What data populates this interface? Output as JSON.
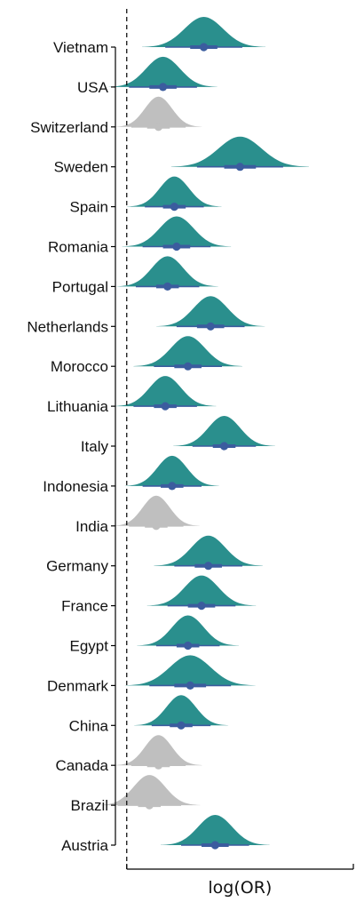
{
  "chart_data": {
    "type": "halfeye",
    "title": "",
    "xlabel": "log(OR)",
    "ylabel": "",
    "reference_line": {
      "x": 0,
      "style": "dashed"
    },
    "xlim": [
      -0.05,
      1.0
    ],
    "colors": {
      "significant": "#2a8f8d",
      "non_significant": "#bfbfbf",
      "point": "#3b5c9e"
    },
    "categories": [
      "Vietnam",
      "USA",
      "Switzerland",
      "Sweden",
      "Spain",
      "Romania",
      "Portugal",
      "Netherlands",
      "Morocco",
      "Lithuania",
      "Italy",
      "Indonesia",
      "India",
      "Germany",
      "France",
      "Egypt",
      "Denmark",
      "China",
      "Canada",
      "Brazil",
      "Austria"
    ],
    "series": [
      {
        "country": "Vietnam",
        "median": 0.34,
        "sd": 0.085,
        "ci_outer": [
          0.17,
          0.51
        ],
        "ci_inner": [
          0.28,
          0.4
        ],
        "significant": true
      },
      {
        "country": "USA",
        "median": 0.16,
        "sd": 0.075,
        "ci_outer": [
          0.01,
          0.31
        ],
        "ci_inner": [
          0.1,
          0.22
        ],
        "significant": true
      },
      {
        "country": "Switzerland",
        "median": 0.14,
        "sd": 0.06,
        "ci_outer": [
          0.02,
          0.26
        ],
        "ci_inner": [
          0.09,
          0.19
        ],
        "significant": false
      },
      {
        "country": "Sweden",
        "median": 0.5,
        "sd": 0.095,
        "ci_outer": [
          0.31,
          0.69
        ],
        "ci_inner": [
          0.43,
          0.57
        ],
        "significant": true
      },
      {
        "country": "Spain",
        "median": 0.21,
        "sd": 0.065,
        "ci_outer": [
          0.08,
          0.34
        ],
        "ci_inner": [
          0.16,
          0.26
        ],
        "significant": true
      },
      {
        "country": "Romania",
        "median": 0.22,
        "sd": 0.075,
        "ci_outer": [
          0.07,
          0.37
        ],
        "ci_inner": [
          0.16,
          0.28
        ],
        "significant": true
      },
      {
        "country": "Portugal",
        "median": 0.18,
        "sd": 0.07,
        "ci_outer": [
          0.04,
          0.32
        ],
        "ci_inner": [
          0.13,
          0.23
        ],
        "significant": true
      },
      {
        "country": "Netherlands",
        "median": 0.37,
        "sd": 0.075,
        "ci_outer": [
          0.22,
          0.52
        ],
        "ci_inner": [
          0.31,
          0.43
        ],
        "significant": true
      },
      {
        "country": "Morocco",
        "median": 0.27,
        "sd": 0.075,
        "ci_outer": [
          0.12,
          0.42
        ],
        "ci_inner": [
          0.21,
          0.33
        ],
        "significant": true
      },
      {
        "country": "Lithuania",
        "median": 0.17,
        "sd": 0.07,
        "ci_outer": [
          0.03,
          0.31
        ],
        "ci_inner": [
          0.12,
          0.22
        ],
        "significant": true
      },
      {
        "country": "Italy",
        "median": 0.43,
        "sd": 0.07,
        "ci_outer": [
          0.29,
          0.57
        ],
        "ci_inner": [
          0.38,
          0.48
        ],
        "significant": true
      },
      {
        "country": "Indonesia",
        "median": 0.2,
        "sd": 0.065,
        "ci_outer": [
          0.07,
          0.33
        ],
        "ci_inner": [
          0.15,
          0.25
        ],
        "significant": true
      },
      {
        "country": "India",
        "median": 0.13,
        "sd": 0.06,
        "ci_outer": [
          0.01,
          0.25
        ],
        "ci_inner": [
          0.08,
          0.18
        ],
        "significant": false
      },
      {
        "country": "Germany",
        "median": 0.36,
        "sd": 0.075,
        "ci_outer": [
          0.21,
          0.51
        ],
        "ci_inner": [
          0.3,
          0.42
        ],
        "significant": true
      },
      {
        "country": "France",
        "median": 0.33,
        "sd": 0.075,
        "ci_outer": [
          0.18,
          0.48
        ],
        "ci_inner": [
          0.27,
          0.39
        ],
        "significant": true
      },
      {
        "country": "Egypt",
        "median": 0.27,
        "sd": 0.07,
        "ci_outer": [
          0.13,
          0.41
        ],
        "ci_inner": [
          0.22,
          0.32
        ],
        "significant": true
      },
      {
        "country": "Denmark",
        "median": 0.28,
        "sd": 0.09,
        "ci_outer": [
          0.1,
          0.46
        ],
        "ci_inner": [
          0.21,
          0.35
        ],
        "significant": true
      },
      {
        "country": "China",
        "median": 0.24,
        "sd": 0.065,
        "ci_outer": [
          0.11,
          0.37
        ],
        "ci_inner": [
          0.19,
          0.29
        ],
        "significant": true
      },
      {
        "country": "Canada",
        "median": 0.14,
        "sd": 0.06,
        "ci_outer": [
          0.02,
          0.26
        ],
        "ci_inner": [
          0.09,
          0.19
        ],
        "significant": false
      },
      {
        "country": "Brazil",
        "median": 0.1,
        "sd": 0.07,
        "ci_outer": [
          -0.04,
          0.24
        ],
        "ci_inner": [
          0.05,
          0.15
        ],
        "significant": false
      },
      {
        "country": "Austria",
        "median": 0.39,
        "sd": 0.075,
        "ci_outer": [
          0.24,
          0.54
        ],
        "ci_inner": [
          0.33,
          0.45
        ],
        "significant": true
      }
    ]
  }
}
